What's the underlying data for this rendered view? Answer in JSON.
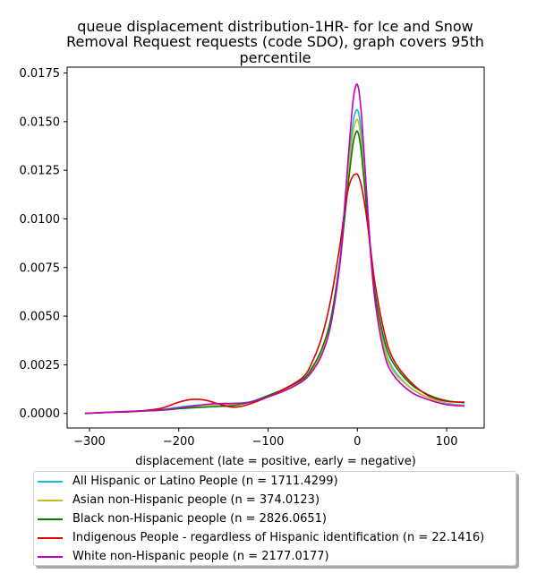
{
  "title_lines": [
    "queue displacement distribution-1HR-  for Ice and Snow",
    "Removal Request  requests (code SDO), graph covers 95th",
    "percentile"
  ],
  "chart_data": {
    "type": "line",
    "title": "queue displacement distribution-1HR-  for Ice and Snow Removal Request  requests (code SDO), graph covers 95th percentile",
    "xlabel": "displacement (late = positive, early = negative)",
    "ylabel": "",
    "xlim": [
      -325,
      142
    ],
    "ylim": [
      -0.00075,
      0.0178
    ],
    "xticks": [
      -300,
      -200,
      -100,
      0,
      100
    ],
    "xtick_labels": [
      "−300",
      "−200",
      "−100",
      "0",
      "100"
    ],
    "yticks": [
      0.0,
      0.0025,
      0.005,
      0.0075,
      0.01,
      0.0125,
      0.015,
      0.0175
    ],
    "ytick_labels": [
      "0.0000",
      "0.0025",
      "0.0050",
      "0.0075",
      "0.0100",
      "0.0125",
      "0.0150",
      "0.0175"
    ],
    "legend_position": "bottom",
    "grid": false,
    "series": [
      {
        "name": "All Hispanic or Latino People (n = 1711.4299)",
        "color": "#17becf",
        "x": [
          -305,
          -280,
          -250,
          -220,
          -200,
          -180,
          -160,
          -140,
          -120,
          -100,
          -80,
          -60,
          -50,
          -40,
          -30,
          -20,
          -15,
          -10,
          -5,
          -2,
          0,
          2,
          5,
          10,
          15,
          20,
          30,
          40,
          60,
          80,
          100,
          120
        ],
        "y": [
          0.0,
          6e-05,
          0.00012,
          0.0002,
          0.00032,
          0.00042,
          0.00046,
          0.00048,
          0.0006,
          0.0009,
          0.0012,
          0.0017,
          0.0023,
          0.0032,
          0.0048,
          0.0078,
          0.0102,
          0.0128,
          0.0149,
          0.0155,
          0.0156,
          0.0153,
          0.0142,
          0.0112,
          0.0083,
          0.006,
          0.0035,
          0.0023,
          0.0013,
          0.0008,
          0.00052,
          0.00042
        ]
      },
      {
        "name": "Asian non-Hispanic people (n = 374.0123)",
        "color": "#bcbd22",
        "x": [
          -305,
          -280,
          -250,
          -220,
          -200,
          -180,
          -160,
          -140,
          -120,
          -100,
          -80,
          -60,
          -50,
          -40,
          -30,
          -20,
          -15,
          -10,
          -5,
          -2,
          0,
          2,
          5,
          10,
          15,
          20,
          30,
          40,
          60,
          80,
          100,
          120
        ],
        "y": [
          0.0,
          6e-05,
          0.00011,
          0.00018,
          0.00028,
          0.00038,
          0.00045,
          0.00048,
          0.00058,
          0.00085,
          0.00118,
          0.0017,
          0.0023,
          0.0032,
          0.0047,
          0.0076,
          0.0099,
          0.0124,
          0.0144,
          0.015,
          0.0151,
          0.0148,
          0.0137,
          0.0108,
          0.008,
          0.0058,
          0.0034,
          0.0022,
          0.0013,
          0.0008,
          0.00048,
          0.0004
        ]
      },
      {
        "name": "Black non-Hispanic people (n = 2826.0651)",
        "color": "#008000",
        "x": [
          -305,
          -280,
          -250,
          -220,
          -200,
          -180,
          -160,
          -140,
          -120,
          -100,
          -80,
          -60,
          -50,
          -40,
          -30,
          -20,
          -15,
          -10,
          -5,
          -2,
          0,
          2,
          5,
          10,
          15,
          20,
          30,
          40,
          60,
          80,
          100,
          120
        ],
        "y": [
          0.0,
          5e-05,
          0.0001,
          0.00016,
          0.00024,
          0.0003,
          0.00035,
          0.0004,
          0.00058,
          0.00092,
          0.0013,
          0.0018,
          0.0024,
          0.0033,
          0.0048,
          0.0076,
          0.0097,
          0.0119,
          0.0138,
          0.0144,
          0.0145,
          0.0142,
          0.0132,
          0.0107,
          0.0082,
          0.0061,
          0.0038,
          0.0026,
          0.0015,
          0.00095,
          0.00065,
          0.00055
        ]
      },
      {
        "name": "Indigenous People - regardless of Hispanic identification (n = 22.1416)",
        "color": "#e00000",
        "x": [
          -305,
          -280,
          -250,
          -220,
          -200,
          -185,
          -170,
          -155,
          -140,
          -125,
          -100,
          -80,
          -60,
          -50,
          -40,
          -30,
          -20,
          -15,
          -10,
          -5,
          -2,
          0,
          2,
          5,
          10,
          15,
          20,
          30,
          40,
          60,
          80,
          100,
          120
        ],
        "y": [
          0.0,
          5e-05,
          0.0001,
          0.00026,
          0.00058,
          0.00072,
          0.00068,
          0.00048,
          0.00032,
          0.00042,
          0.00085,
          0.0013,
          0.0019,
          0.0027,
          0.0039,
          0.0058,
          0.0085,
          0.0102,
          0.0116,
          0.0122,
          0.0123,
          0.0123,
          0.0121,
          0.0116,
          0.0102,
          0.0084,
          0.0066,
          0.0042,
          0.0028,
          0.0016,
          0.0009,
          0.00062,
          0.00058
        ]
      },
      {
        "name": "White non-Hispanic people (n = 2177.0177)",
        "color": "#bf00bf",
        "x": [
          -305,
          -280,
          -250,
          -220,
          -200,
          -180,
          -160,
          -140,
          -120,
          -100,
          -80,
          -60,
          -50,
          -40,
          -30,
          -20,
          -15,
          -10,
          -5,
          -2,
          0,
          2,
          5,
          10,
          15,
          20,
          30,
          40,
          60,
          80,
          100,
          120
        ],
        "y": [
          0.0,
          6e-05,
          0.00011,
          0.00018,
          0.00028,
          0.0004,
          0.0005,
          0.00052,
          0.00058,
          0.00085,
          0.0012,
          0.0017,
          0.0022,
          0.003,
          0.0045,
          0.0075,
          0.0102,
          0.0133,
          0.016,
          0.0168,
          0.0169,
          0.0165,
          0.0151,
          0.0116,
          0.0082,
          0.0057,
          0.0031,
          0.002,
          0.0011,
          0.0007,
          0.00045,
          0.00038
        ]
      }
    ]
  }
}
